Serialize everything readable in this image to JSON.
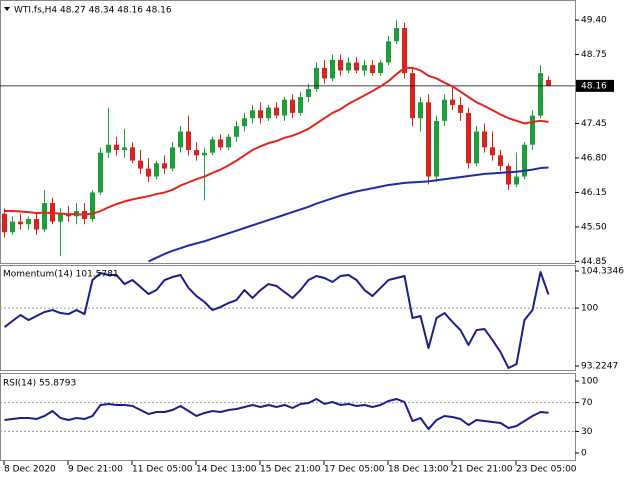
{
  "chart_data": [
    {
      "type": "candlestick",
      "title": "WTI.fs,H4  48.27 48.34 48.16 48.16",
      "categories": [
        "8 Dec 2020",
        null,
        null,
        null,
        null,
        null,
        null,
        null,
        "9 Dec 21:00",
        null,
        null,
        null,
        null,
        null,
        null,
        null,
        "11 Dec 05:00",
        null,
        null,
        null,
        null,
        null,
        null,
        null,
        "14 Dec 13:00",
        null,
        null,
        null,
        null,
        null,
        null,
        null,
        "15 Dec 21:00",
        null,
        null,
        null,
        null,
        null,
        null,
        null,
        "17 Dec 05:00",
        null,
        null,
        null,
        null,
        null,
        null,
        null,
        "18 Dec 13:00",
        null,
        null,
        null,
        null,
        null,
        null,
        null,
        "21 Dec 21:00",
        null,
        null,
        null,
        null,
        null,
        null,
        null,
        "23 Dec 05:00",
        null,
        null,
        null,
        null
      ],
      "open": [
        45.75,
        45.4,
        45.6,
        45.55,
        45.65,
        45.45,
        45.95,
        45.6,
        45.75,
        45.7,
        45.8,
        45.65,
        46.15,
        46.9,
        47.05,
        46.95,
        47.0,
        46.75,
        46.6,
        46.45,
        46.7,
        46.6,
        47.0,
        47.3,
        46.95,
        46.85,
        46.9,
        47.15,
        47.0,
        47.2,
        47.4,
        47.55,
        47.7,
        47.55,
        47.75,
        47.6,
        47.9,
        47.65,
        47.95,
        48.1,
        48.5,
        48.3,
        48.65,
        48.45,
        48.6,
        48.45,
        48.55,
        48.4,
        48.6,
        49.0,
        49.25,
        48.4,
        47.55,
        47.85,
        46.45,
        47.5,
        47.9,
        47.8,
        47.65,
        46.7,
        47.3,
        47.0,
        46.85,
        46.65,
        46.3,
        46.45,
        47.05,
        47.6,
        48.27
      ],
      "high": [
        45.85,
        45.7,
        45.75,
        45.7,
        45.75,
        46.2,
        46.05,
        45.85,
        45.9,
        45.95,
        45.95,
        46.2,
        47.0,
        47.75,
        47.2,
        47.35,
        47.1,
        46.95,
        46.8,
        46.75,
        46.85,
        47.1,
        47.4,
        47.6,
        47.1,
        47.0,
        47.2,
        47.25,
        47.25,
        47.5,
        47.65,
        47.8,
        47.85,
        47.8,
        47.85,
        47.95,
        48.0,
        48.05,
        48.2,
        48.6,
        48.65,
        48.75,
        48.75,
        48.7,
        48.7,
        48.65,
        48.65,
        48.65,
        49.1,
        49.4,
        49.35,
        48.5,
        47.95,
        48.0,
        47.6,
        48.0,
        48.15,
        47.95,
        47.75,
        47.4,
        47.45,
        47.3,
        46.95,
        46.7,
        46.9,
        47.1,
        47.7,
        48.55,
        48.34
      ],
      "low": [
        45.3,
        45.35,
        45.45,
        45.45,
        45.35,
        45.4,
        45.55,
        44.95,
        45.6,
        45.55,
        45.55,
        45.6,
        46.1,
        46.8,
        46.85,
        46.8,
        46.7,
        46.5,
        46.35,
        46.4,
        46.5,
        46.55,
        46.9,
        46.85,
        46.75,
        46.0,
        46.85,
        46.95,
        46.95,
        47.1,
        47.3,
        47.45,
        47.45,
        47.5,
        47.55,
        47.5,
        47.55,
        47.6,
        47.85,
        48.05,
        48.2,
        48.25,
        48.35,
        48.4,
        48.4,
        48.35,
        48.35,
        48.35,
        48.55,
        48.95,
        48.3,
        47.4,
        47.3,
        46.3,
        46.35,
        47.4,
        47.7,
        47.5,
        46.6,
        46.65,
        46.9,
        46.75,
        46.55,
        46.2,
        46.25,
        46.4,
        46.95,
        47.55,
        48.16
      ],
      "close": [
        45.4,
        45.6,
        45.55,
        45.65,
        45.45,
        45.95,
        45.6,
        45.75,
        45.7,
        45.8,
        45.65,
        46.15,
        46.9,
        47.05,
        46.95,
        47.0,
        46.75,
        46.6,
        46.45,
        46.7,
        46.6,
        47.0,
        47.3,
        46.95,
        46.85,
        46.9,
        47.15,
        47.0,
        47.2,
        47.4,
        47.55,
        47.7,
        47.55,
        47.75,
        47.6,
        47.9,
        47.65,
        47.95,
        48.1,
        48.5,
        48.3,
        48.65,
        48.45,
        48.6,
        48.45,
        48.55,
        48.4,
        48.6,
        49.0,
        49.25,
        48.4,
        47.55,
        47.85,
        46.45,
        47.5,
        47.9,
        47.8,
        47.65,
        46.7,
        47.3,
        47.0,
        46.85,
        46.65,
        46.3,
        46.45,
        47.05,
        47.6,
        48.4,
        48.16
      ],
      "up_color": "#1e9e3a",
      "down_color": "#d8231f",
      "series": [
        {
          "color": "#e3261d",
          "values": [
            45.8,
            45.8,
            45.79,
            45.78,
            45.76,
            45.77,
            45.76,
            45.75,
            45.74,
            45.74,
            45.73,
            45.75,
            45.8,
            45.87,
            45.93,
            45.98,
            46.02,
            46.05,
            46.08,
            46.12,
            46.15,
            46.2,
            46.28,
            46.34,
            46.4,
            46.45,
            46.52,
            46.58,
            46.66,
            46.75,
            46.85,
            46.95,
            47.02,
            47.08,
            47.12,
            47.18,
            47.22,
            47.28,
            47.35,
            47.45,
            47.55,
            47.65,
            47.72,
            47.82,
            47.9,
            47.98,
            48.06,
            48.15,
            48.25,
            48.38,
            48.5,
            48.5,
            48.45,
            48.35,
            48.3,
            48.22,
            48.15,
            48.05,
            47.95,
            47.85,
            47.78,
            47.7,
            47.62,
            47.55,
            47.5,
            47.45,
            47.48,
            47.5,
            47.48
          ]
        },
        {
          "color": "#1b2ea8",
          "values": [
            null,
            null,
            null,
            null,
            null,
            null,
            null,
            null,
            null,
            null,
            null,
            null,
            null,
            null,
            null,
            null,
            null,
            null,
            44.85,
            44.92,
            44.99,
            45.05,
            45.1,
            45.15,
            45.19,
            45.23,
            45.28,
            45.33,
            45.38,
            45.43,
            45.48,
            45.53,
            45.58,
            45.63,
            45.68,
            45.73,
            45.78,
            45.83,
            45.88,
            45.94,
            45.99,
            46.04,
            46.09,
            46.13,
            46.17,
            46.2,
            46.23,
            46.26,
            46.29,
            46.31,
            46.33,
            46.34,
            46.35,
            46.36,
            46.38,
            46.4,
            46.42,
            46.44,
            46.46,
            46.48,
            46.5,
            46.51,
            46.52,
            46.53,
            46.54,
            46.56,
            46.58,
            46.61,
            46.62
          ]
        }
      ],
      "ylim": [
        44.82,
        49.76
      ],
      "yticks": [
        {
          "value": 49.4,
          "label": "49.40"
        },
        48.75,
        47.45,
        {
          "value": 46.8,
          "label": "46.80"
        },
        46.15,
        {
          "value": 45.5,
          "label": "45.50"
        },
        44.85
      ],
      "current_price": 48.16
    },
    {
      "type": "line",
      "title": "Momentum(14) 101.5781",
      "series": [
        {
          "color": "#1a1f8c",
          "values": [
            97.78,
            98.49,
            99.19,
            98.6,
            99.07,
            99.54,
            99.77,
            99.42,
            99.3,
            99.77,
            99.3,
            103.28,
            104.1,
            103.87,
            103.87,
            102.81,
            103.28,
            102.46,
            101.64,
            102.11,
            103.28,
            103.63,
            103.87,
            102.35,
            101.41,
            100.71,
            99.77,
            100.12,
            100.59,
            100.94,
            102.11,
            101.18,
            102.11,
            102.81,
            102.58,
            101.88,
            101.18,
            102.11,
            103.28,
            103.75,
            103.52,
            103.05,
            103.75,
            103.87,
            103.28,
            102.11,
            101.41,
            102.35,
            103.28,
            103.52,
            103.75,
            98.84,
            99.07,
            95.33,
            98.84,
            99.42,
            98.37,
            97.43,
            95.68,
            97.43,
            97.55,
            96.26,
            94.86,
            92.99,
            93.45,
            98.6,
            99.77,
            104.22,
            101.5781
          ]
        }
      ],
      "ylim": [
        92.76,
        104.92
      ],
      "yticks": [
        104.3346,
        100,
        93.2247
      ],
      "levels": [
        100
      ]
    },
    {
      "type": "line",
      "title": "RSI(14) 55.8793",
      "series": [
        {
          "color": "#1a1f8c",
          "values": [
            45.8,
            47.2,
            48.6,
            48.6,
            47.2,
            51.4,
            58.3,
            48.6,
            45.8,
            48.6,
            47.2,
            51.4,
            66.7,
            68.1,
            66.7,
            66.7,
            65.3,
            59.7,
            54.2,
            56.9,
            56.9,
            59.7,
            65.3,
            58.3,
            51.4,
            55.6,
            58.3,
            56.9,
            59.7,
            61.1,
            63.9,
            66.7,
            63.9,
            66.7,
            63.9,
            66.7,
            62.5,
            68.1,
            69.4,
            75.0,
            68.1,
            70.8,
            66.7,
            68.1,
            65.3,
            66.7,
            63.9,
            66.7,
            72.2,
            75.0,
            70.8,
            44.4,
            48.6,
            33.3,
            45.8,
            51.4,
            50.0,
            47.2,
            38.9,
            45.8,
            44.4,
            43.1,
            41.7,
            34.7,
            37.5,
            44.4,
            51.4,
            56.9,
            55.8793
          ]
        }
      ],
      "ylim": [
        -9.7,
        109.7
      ],
      "yticks": [
        100,
        70,
        30,
        0
      ],
      "levels": [
        70,
        30
      ]
    }
  ]
}
